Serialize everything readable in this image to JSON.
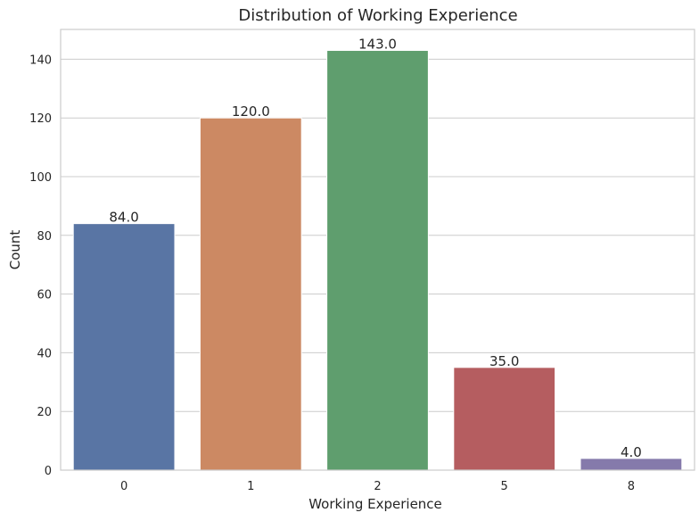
{
  "chart_data": {
    "type": "bar",
    "title": "Distribution of Working Experience",
    "xlabel": "Working Experience",
    "ylabel": "Count",
    "categories": [
      "0",
      "1",
      "2",
      "5",
      "8"
    ],
    "values": [
      84,
      120,
      143,
      35,
      4
    ],
    "data_labels": [
      "84.0",
      "120.0",
      "143.0",
      "35.0",
      "4.0"
    ],
    "colors": [
      "#5975a4",
      "#cc8963",
      "#5f9e6e",
      "#b55d60",
      "#857aab"
    ],
    "ylim": [
      0,
      150.15
    ],
    "yticks": [
      0,
      20,
      40,
      60,
      80,
      100,
      120,
      140
    ],
    "grid": true,
    "legend": "none"
  }
}
